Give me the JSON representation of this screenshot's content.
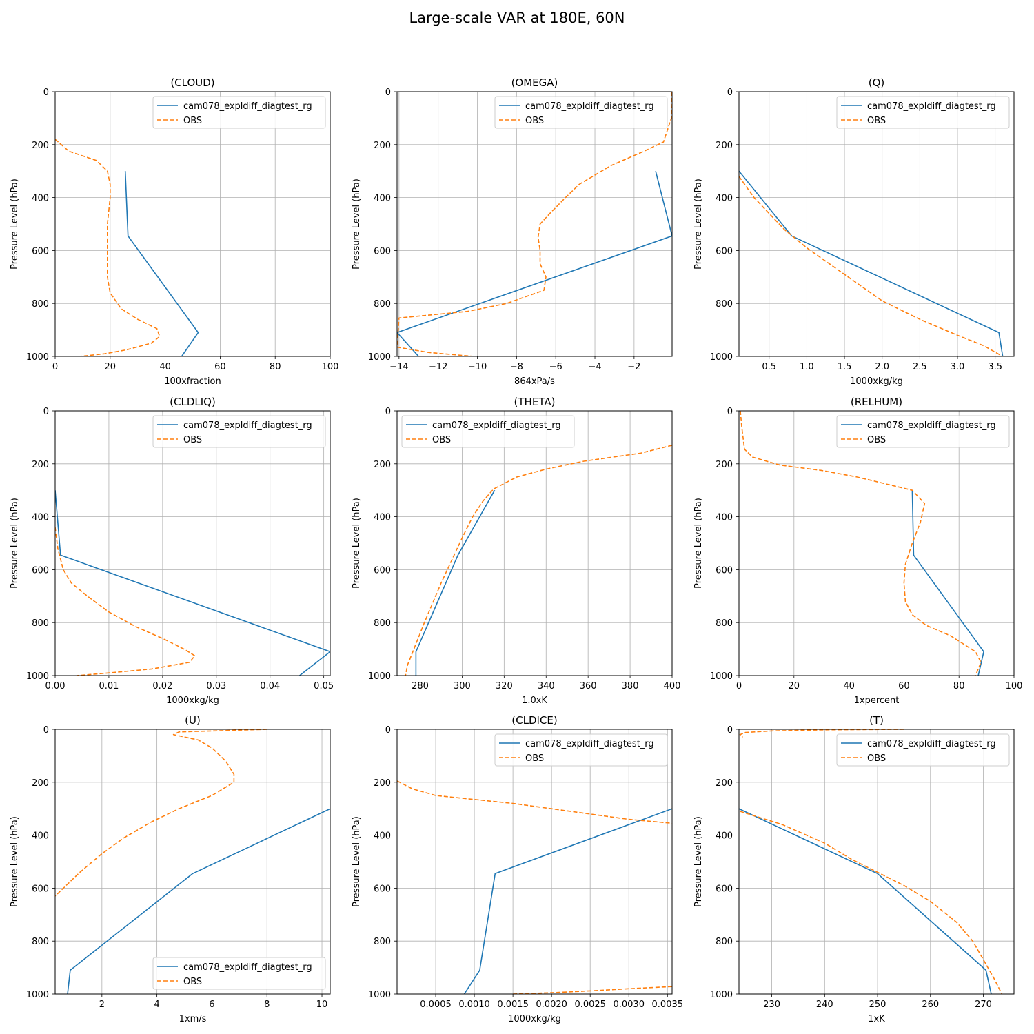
{
  "suptitle": "Large-scale VAR at 180E, 60N",
  "colors": {
    "model": "#1f77b4",
    "obs": "#ff7f0e",
    "grid": "#b0b0b0"
  },
  "chart_data": [
    {
      "type": "line",
      "title": "(CLOUD)",
      "xlabel": "100xfraction",
      "ylabel": "Pressure Level (hPa)",
      "xlim": [
        0,
        100
      ],
      "ylim": [
        1000,
        0
      ],
      "invert_y": true,
      "grid": true,
      "legend_loc": "upper right",
      "xticks": [
        0,
        20,
        40,
        60,
        80,
        100
      ],
      "xtick_labels": [
        "0",
        "20",
        "40",
        "60",
        "80",
        "100"
      ],
      "yticks": [
        0,
        200,
        400,
        600,
        800,
        1000
      ],
      "ytick_labels": [
        "0",
        "200",
        "400",
        "600",
        "800",
        "1000"
      ],
      "series": [
        {
          "name": "cam078_expldiff_diagtest_rg",
          "style": "solid",
          "x": [
            25.5,
            26.5,
            52,
            46
          ],
          "y": [
            300,
            545,
            910,
            1000
          ]
        },
        {
          "name": "OBS",
          "style": "dashed",
          "x": [
            0,
            5,
            15,
            19,
            20,
            20,
            19,
            19,
            19,
            20,
            24,
            30,
            37,
            38,
            35,
            26,
            18,
            9
          ],
          "y": [
            180,
            225,
            260,
            300,
            350,
            400,
            500,
            600,
            700,
            760,
            820,
            860,
            895,
            925,
            950,
            975,
            990,
            1000
          ]
        }
      ]
    },
    {
      "type": "line",
      "title": "(OMEGA)",
      "xlabel": "864xPa/s",
      "ylabel": "Pressure Level (hPa)",
      "xlim": [
        -14.1,
        -0.06
      ],
      "ylim": [
        1000,
        0
      ],
      "invert_y": true,
      "grid": true,
      "legend_loc": "upper right",
      "xticks": [
        -14,
        -12,
        -10,
        -8,
        -6,
        -4,
        -2
      ],
      "xtick_labels": [
        "−14",
        "−12",
        "−10",
        "−8",
        "−6",
        "−4",
        "−2"
      ],
      "yticks": [
        0,
        200,
        400,
        600,
        800,
        1000
      ],
      "ytick_labels": [
        "0",
        "200",
        "400",
        "600",
        "800",
        "1000"
      ],
      "series": [
        {
          "name": "cam078_expldiff_diagtest_rg",
          "style": "solid",
          "x": [
            -0.9,
            -0.06,
            -14.1,
            -13.0
          ],
          "y": [
            300,
            545,
            910,
            1000
          ]
        },
        {
          "name": "OBS",
          "style": "dashed",
          "x": [
            -0.1,
            -0.06,
            -0.1,
            -0.5,
            -1.5,
            -3.2,
            -4.8,
            -5.5,
            -6.3,
            -6.8,
            -6.9,
            -6.8,
            -6.8,
            -6.5,
            -6.6,
            -8.5,
            -10.5,
            -14.0,
            -14.1,
            -12.5,
            -10.2
          ],
          "y": [
            0,
            50,
            100,
            190,
            225,
            280,
            350,
            400,
            460,
            500,
            550,
            600,
            650,
            700,
            750,
            800,
            830,
            855,
            965,
            985,
            1000
          ]
        }
      ]
    },
    {
      "type": "line",
      "title": "(Q)",
      "xlabel": "1000xkg/kg",
      "ylabel": "Pressure Level (hPa)",
      "xlim": [
        0.1,
        3.75
      ],
      "ylim": [
        1000,
        0
      ],
      "invert_y": true,
      "grid": true,
      "legend_loc": "upper right",
      "xticks": [
        0.5,
        1.0,
        1.5,
        2.0,
        2.5,
        3.0,
        3.5
      ],
      "xtick_labels": [
        "0.5",
        "1.0",
        "1.5",
        "2.0",
        "2.5",
        "3.0",
        "3.5"
      ],
      "yticks": [
        0,
        200,
        400,
        600,
        800,
        1000
      ],
      "ytick_labels": [
        "0",
        "200",
        "400",
        "600",
        "800",
        "1000"
      ],
      "series": [
        {
          "name": "cam078_expldiff_diagtest_rg",
          "style": "solid",
          "x": [
            0.1,
            0.8,
            3.55,
            3.6
          ],
          "y": [
            300,
            545,
            910,
            1000
          ]
        },
        {
          "name": "OBS",
          "style": "dashed",
          "x": [
            0.1,
            0.3,
            0.5,
            0.7,
            1.0,
            1.5,
            2.0,
            2.5,
            3.0,
            3.35,
            3.6
          ],
          "y": [
            320,
            400,
            460,
            520,
            590,
            690,
            790,
            860,
            920,
            960,
            1000
          ]
        }
      ]
    },
    {
      "type": "line",
      "title": "(CLDLIQ)",
      "xlabel": "1000xkg/kg",
      "ylabel": "Pressure Level (hPa)",
      "xlim": [
        0,
        0.0512
      ],
      "ylim": [
        1000,
        0
      ],
      "invert_y": true,
      "grid": true,
      "legend_loc": "upper right",
      "xticks": [
        0,
        0.01,
        0.02,
        0.03,
        0.04,
        0.05
      ],
      "xtick_labels": [
        "0.00",
        "0.01",
        "0.02",
        "0.03",
        "0.04",
        "0.05"
      ],
      "yticks": [
        0,
        200,
        400,
        600,
        800,
        1000
      ],
      "ytick_labels": [
        "0",
        "200",
        "400",
        "600",
        "800",
        "1000"
      ],
      "series": [
        {
          "name": "cam078_expldiff_diagtest_rg",
          "style": "solid",
          "x": [
            0,
            0.001,
            0.0512,
            0.0455
          ],
          "y": [
            300,
            545,
            910,
            1000
          ]
        },
        {
          "name": "OBS",
          "style": "dashed",
          "x": [
            0,
            0.0005,
            0.0015,
            0.003,
            0.006,
            0.01,
            0.015,
            0.02,
            0.024,
            0.026,
            0.025,
            0.018,
            0.01,
            0.004
          ],
          "y": [
            440,
            520,
            600,
            650,
            700,
            760,
            815,
            860,
            900,
            925,
            950,
            975,
            990,
            1000
          ]
        }
      ]
    },
    {
      "type": "line",
      "title": "(THETA)",
      "xlabel": "1.0xK",
      "ylabel": "Pressure Level (hPa)",
      "xlim": [
        269,
        400
      ],
      "ylim": [
        1000,
        0
      ],
      "invert_y": true,
      "grid": true,
      "legend_loc": "upper left",
      "xticks": [
        280,
        300,
        320,
        340,
        360,
        380,
        400
      ],
      "xtick_labels": [
        "280",
        "300",
        "320",
        "340",
        "360",
        "380",
        "400"
      ],
      "yticks": [
        0,
        200,
        400,
        600,
        800,
        1000
      ],
      "ytick_labels": [
        "0",
        "200",
        "400",
        "600",
        "800",
        "1000"
      ],
      "series": [
        {
          "name": "cam078_expldiff_diagtest_rg",
          "style": "solid",
          "x": [
            315.5,
            298,
            278,
            278
          ],
          "y": [
            300,
            545,
            910,
            1000
          ]
        },
        {
          "name": "OBS",
          "style": "dashed",
          "x": [
            400,
            385,
            358,
            340,
            326,
            315,
            310,
            305,
            300,
            290,
            282,
            277,
            274,
            273
          ],
          "y": [
            130,
            160,
            190,
            220,
            250,
            295,
            340,
            400,
            480,
            650,
            800,
            900,
            960,
            1000
          ]
        }
      ]
    },
    {
      "type": "line",
      "title": "(RELHUM)",
      "xlabel": "1xpercent",
      "ylabel": "Pressure Level (hPa)",
      "xlim": [
        0,
        100
      ],
      "ylim": [
        1000,
        0
      ],
      "invert_y": true,
      "grid": true,
      "legend_loc": "upper right",
      "xticks": [
        0,
        20,
        40,
        60,
        80,
        100
      ],
      "xtick_labels": [
        "0",
        "20",
        "40",
        "60",
        "80",
        "100"
      ],
      "yticks": [
        0,
        200,
        400,
        600,
        800,
        1000
      ],
      "ytick_labels": [
        "0",
        "200",
        "400",
        "600",
        "800",
        "1000"
      ],
      "series": [
        {
          "name": "cam078_expldiff_diagtest_rg",
          "style": "solid",
          "x": [
            63,
            63.5,
            89,
            87
          ],
          "y": [
            300,
            545,
            910,
            1000
          ]
        },
        {
          "name": "OBS",
          "style": "dashed",
          "x": [
            0.5,
            1,
            2,
            5,
            15,
            30,
            43,
            55,
            63,
            67.5,
            66,
            63,
            60.5,
            60,
            60.5,
            63,
            68,
            77,
            86,
            88,
            86
          ],
          "y": [
            0,
            60,
            145,
            175,
            205,
            225,
            250,
            280,
            300,
            350,
            420,
            500,
            580,
            650,
            720,
            770,
            810,
            850,
            910,
            950,
            1000
          ]
        }
      ]
    },
    {
      "type": "line",
      "title": "(U)",
      "xlabel": "1xm/s",
      "ylabel": "Pressure Level (hPa)",
      "xlim": [
        0.3,
        10.3
      ],
      "ylim": [
        1000,
        0
      ],
      "invert_y": true,
      "grid": true,
      "legend_loc": "lower right",
      "xticks": [
        2,
        4,
        6,
        8,
        10
      ],
      "xtick_labels": [
        "2",
        "4",
        "6",
        "8",
        "10"
      ],
      "yticks": [
        0,
        200,
        400,
        600,
        800,
        1000
      ],
      "ytick_labels": [
        "0",
        "200",
        "400",
        "600",
        "800",
        "1000"
      ],
      "series": [
        {
          "name": "cam078_expldiff_diagtest_rg",
          "style": "solid",
          "x": [
            10.3,
            5.3,
            0.85,
            0.75
          ],
          "y": [
            300,
            545,
            910,
            1000
          ]
        },
        {
          "name": "OBS",
          "style": "dashed",
          "x": [
            8.0,
            4.8,
            4.6,
            5.5,
            6.0,
            6.5,
            6.8,
            6.8,
            6.0,
            4.8,
            3.8,
            2.8,
            2.0,
            1.2,
            0.3
          ],
          "y": [
            0,
            10,
            20,
            40,
            70,
            120,
            170,
            200,
            250,
            300,
            350,
            410,
            470,
            540,
            630
          ]
        }
      ]
    },
    {
      "type": "line",
      "title": "(CLDICE)",
      "xlabel": "1000xkg/kg",
      "ylabel": "Pressure Level (hPa)",
      "xlim": [
        0,
        0.00356
      ],
      "ylim": [
        1000,
        0
      ],
      "invert_y": true,
      "grid": true,
      "legend_loc": "upper right",
      "xticks": [
        0.0005,
        0.001,
        0.0015,
        0.002,
        0.0025,
        0.003,
        0.0035
      ],
      "xtick_labels": [
        "0.0005",
        "0.0010",
        "0.0015",
        "0.0020",
        "0.0025",
        "0.0030",
        "0.0035"
      ],
      "yticks": [
        0,
        200,
        400,
        600,
        800,
        1000
      ],
      "ytick_labels": [
        "0",
        "200",
        "400",
        "600",
        "800",
        "1000"
      ],
      "series": [
        {
          "name": "cam078_expldiff_diagtest_rg",
          "style": "solid",
          "x": [
            0.00356,
            0.00127,
            0.00107,
            0.00087
          ],
          "y": [
            300,
            545,
            910,
            1000
          ]
        },
        {
          "name": "OBS",
          "style": "dashed",
          "x": [
            0,
            0.0002,
            0.0005,
            0.001,
            0.0015,
            0.002,
            0.0025,
            0.003,
            0.00356
          ],
          "y": [
            195,
            225,
            250,
            265,
            280,
            300,
            320,
            340,
            355
          ]
        },
        {
          "name": "OBS",
          "style": "dashed",
          "legend": false,
          "x": [
            0.0015,
            0.002,
            0.0025,
            0.003,
            0.00356
          ],
          "y": [
            1000,
            995,
            988,
            980,
            972
          ]
        }
      ]
    },
    {
      "type": "line",
      "title": "(T)",
      "xlabel": "1xK",
      "ylabel": "Pressure Level (hPa)",
      "xlim": [
        223.8,
        275.8
      ],
      "ylim": [
        1000,
        0
      ],
      "invert_y": true,
      "grid": true,
      "legend_loc": "upper right",
      "xticks": [
        230,
        240,
        250,
        260,
        270
      ],
      "xtick_labels": [
        "230",
        "240",
        "250",
        "260",
        "270"
      ],
      "yticks": [
        0,
        200,
        400,
        600,
        800,
        1000
      ],
      "ytick_labels": [
        "0",
        "200",
        "400",
        "600",
        "800",
        "1000"
      ],
      "series": [
        {
          "name": "cam078_expldiff_diagtest_rg",
          "style": "solid",
          "x": [
            223.8,
            250,
            270.5,
            271.5
          ],
          "y": [
            300,
            545,
            910,
            1000
          ]
        },
        {
          "name": "OBS",
          "style": "dashed",
          "x": [
            255,
            240,
            230,
            225,
            224,
            224.5
          ],
          "y": [
            0,
            2,
            6,
            12,
            20,
            30
          ]
        },
        {
          "name": "OBS",
          "style": "dashed",
          "legend": false,
          "x": [
            224,
            232,
            240,
            245,
            250,
            255,
            260,
            265,
            268,
            270,
            272,
            273.5
          ],
          "y": [
            310,
            360,
            430,
            490,
            540,
            590,
            650,
            730,
            800,
            870,
            940,
            1000
          ]
        }
      ]
    }
  ]
}
